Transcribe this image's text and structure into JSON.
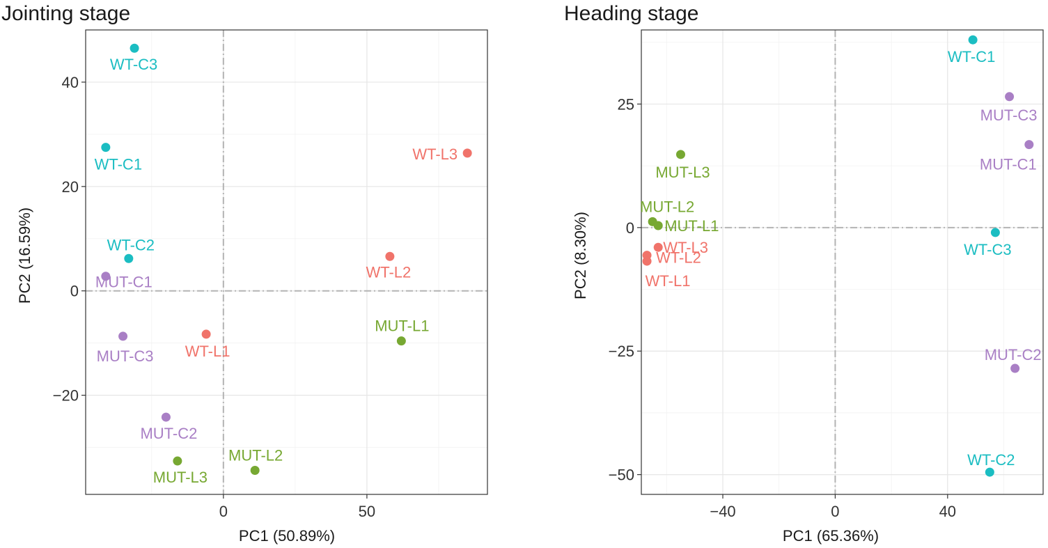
{
  "colors": {
    "WT-C": "#1bbdc2",
    "MUT-C": "#a97fc5",
    "WT-L": "#f0736a",
    "MUT-L": "#77a832"
  },
  "chart_data": [
    {
      "type": "scatter",
      "title": "Jointing stage",
      "xlabel": "PC1 (50.89%)",
      "ylabel": "PC2 (16.59%)",
      "xlim": [
        -48,
        92
      ],
      "ylim": [
        -39,
        50
      ],
      "xticks": [
        0,
        50
      ],
      "xtick_labels": [
        "0",
        "50"
      ],
      "yticks": [
        -20,
        0,
        20,
        40
      ],
      "ytick_labels": [
        "−20",
        "0",
        "20",
        "40"
      ],
      "ref_lines": {
        "x": 0,
        "y": 0
      },
      "points": [
        {
          "label": "WT-C3",
          "group": "WT-C",
          "x": -31,
          "y": 46.5
        },
        {
          "label": "WT-C1",
          "group": "WT-C",
          "x": -41,
          "y": 27.5
        },
        {
          "label": "WT-C2",
          "group": "WT-C",
          "x": -33,
          "y": 6.2
        },
        {
          "label": "MUT-C1",
          "group": "MUT-C",
          "x": -41,
          "y": 2.8
        },
        {
          "label": "MUT-C3",
          "group": "MUT-C",
          "x": -35,
          "y": -8.7
        },
        {
          "label": "MUT-C2",
          "group": "MUT-C",
          "x": -20,
          "y": -24.2
        },
        {
          "label": "WT-L1",
          "group": "WT-L",
          "x": -6,
          "y": -8.3
        },
        {
          "label": "WT-L2",
          "group": "WT-L",
          "x": 58,
          "y": 6.6
        },
        {
          "label": "WT-L3",
          "group": "WT-L",
          "x": 85,
          "y": 26.4
        },
        {
          "label": "MUT-L1",
          "group": "MUT-L",
          "x": 62,
          "y": -9.6
        },
        {
          "label": "MUT-L2",
          "group": "MUT-L",
          "x": 11,
          "y": -34.4
        },
        {
          "label": "MUT-L3",
          "group": "MUT-L",
          "x": -16,
          "y": -32.6
        }
      ]
    },
    {
      "type": "scatter",
      "title": "Heading stage",
      "xlabel": "PC1 (65.36%)",
      "ylabel": "PC2 (8.30%)",
      "xlim": [
        -69,
        74
      ],
      "ylim": [
        -54,
        40
      ],
      "xticks": [
        -40,
        0,
        40
      ],
      "xtick_labels": [
        "−40",
        "0",
        "40"
      ],
      "yticks": [
        -50,
        -25,
        0,
        25
      ],
      "ytick_labels": [
        "−50",
        "−25",
        "0",
        "25"
      ],
      "ref_lines": {
        "x": 0,
        "y": 0
      },
      "points": [
        {
          "label": "WT-C1",
          "group": "WT-C",
          "x": 49,
          "y": 38
        },
        {
          "label": "MUT-C3",
          "group": "MUT-C",
          "x": 62,
          "y": 26.5
        },
        {
          "label": "MUT-C1",
          "group": "MUT-C",
          "x": 69,
          "y": 16.8
        },
        {
          "label": "WT-C3",
          "group": "WT-C",
          "x": 57,
          "y": -1
        },
        {
          "label": "MUT-C2",
          "group": "MUT-C",
          "x": 64,
          "y": -28.5
        },
        {
          "label": "WT-C2",
          "group": "WT-C",
          "x": 55,
          "y": -49.5
        },
        {
          "label": "MUT-L3",
          "group": "MUT-L",
          "x": -55,
          "y": 14.8
        },
        {
          "label": "MUT-L2",
          "group": "MUT-L",
          "x": -65,
          "y": 1.2
        },
        {
          "label": "MUT-L1",
          "group": "MUT-L",
          "x": -63,
          "y": 0.4
        },
        {
          "label": "WT-L3",
          "group": "WT-L",
          "x": -63,
          "y": -4
        },
        {
          "label": "WT-L2",
          "group": "WT-L",
          "x": -67,
          "y": -5.6
        },
        {
          "label": "WT-L1",
          "group": "WT-L",
          "x": -67,
          "y": -6.8
        }
      ]
    }
  ]
}
